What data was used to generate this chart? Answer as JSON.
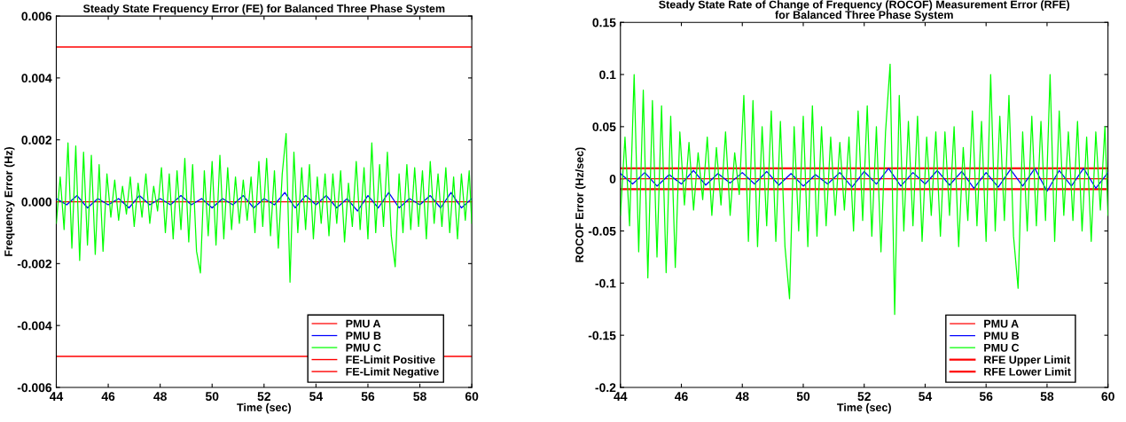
{
  "chart_data": [
    {
      "type": "line",
      "title": "Steady State Frequency Error (FE) for Balanced Three Phase System",
      "xlabel": "Time (sec)",
      "ylabel": "Frequency Error (Hz)",
      "xlim": [
        44,
        60
      ],
      "xticks": [
        44,
        46,
        48,
        50,
        52,
        54,
        56,
        58,
        60
      ],
      "ylim": [
        -0.006,
        0.006
      ],
      "yticks": [
        {
          "value": -0.006,
          "label": "-0.006"
        },
        {
          "value": -0.004,
          "label": "-0.004"
        },
        {
          "value": -0.002,
          "label": "-0.002"
        },
        {
          "value": 0,
          "label": "0.000"
        },
        {
          "value": 0.002,
          "label": "0.002"
        },
        {
          "value": 0.004,
          "label": "0.004"
        },
        {
          "value": 0.006,
          "label": "0.006"
        }
      ],
      "grid": false,
      "legend": "bottom right",
      "series": [
        {
          "name": "PMU A",
          "color": "#ff0000",
          "x": [
            44,
            60
          ],
          "values": [
            0,
            0
          ]
        },
        {
          "name": "PMU B",
          "color": "#0000ff",
          "x": [
            44,
            44.4,
            44.8,
            45.2,
            45.6,
            46,
            46.4,
            46.8,
            47.2,
            47.6,
            48,
            48.4,
            48.8,
            49.2,
            49.6,
            50,
            50.4,
            50.8,
            51.2,
            51.6,
            52,
            52.4,
            52.8,
            53.2,
            53.6,
            54,
            54.4,
            54.8,
            55.2,
            55.6,
            56,
            56.4,
            56.8,
            57.2,
            57.6,
            58,
            58.4,
            58.8,
            59.2,
            59.6,
            60
          ],
          "values": [
            0.0001,
            -0.0001,
            0.0002,
            -0.0002,
            0.0001,
            -0.0001,
            0.0001,
            -0.0002,
            0.0002,
            -0.0001,
            0.0001,
            -0.0001,
            0.0002,
            -0.0001,
            0.0001,
            -0.0002,
            0.0001,
            -0.0001,
            0.0002,
            -0.0002,
            0.0001,
            -0.0001,
            0.0003,
            -0.0002,
            0.0002,
            -0.0001,
            0.0002,
            -0.0002,
            0.0001,
            -0.0003,
            0.0002,
            -0.0002,
            0.0003,
            -0.0002,
            0.0001,
            -0.0001,
            0.0002,
            -0.0002,
            0.0003,
            -0.0002,
            0.0001
          ]
        },
        {
          "name": "PMU C",
          "color": "#00ff00",
          "x": [
            44,
            44.15,
            44.3,
            44.45,
            44.6,
            44.75,
            44.9,
            45.05,
            45.2,
            45.35,
            45.5,
            45.65,
            45.8,
            45.95,
            46.1,
            46.25,
            46.4,
            46.55,
            46.7,
            46.85,
            47,
            47.15,
            47.3,
            47.45,
            47.6,
            47.75,
            47.9,
            48.05,
            48.2,
            48.35,
            48.5,
            48.65,
            48.8,
            48.95,
            49.1,
            49.25,
            49.4,
            49.55,
            49.7,
            49.85,
            50,
            50.15,
            50.3,
            50.45,
            50.6,
            50.75,
            50.9,
            51.05,
            51.2,
            51.35,
            51.5,
            51.65,
            51.8,
            51.95,
            52.1,
            52.25,
            52.4,
            52.55,
            52.7,
            52.85,
            53,
            53.15,
            53.3,
            53.45,
            53.6,
            53.75,
            53.9,
            54.05,
            54.2,
            54.35,
            54.5,
            54.65,
            54.8,
            54.95,
            55.1,
            55.25,
            55.4,
            55.55,
            55.7,
            55.85,
            56,
            56.15,
            56.3,
            56.45,
            56.6,
            56.75,
            56.9,
            57.05,
            57.2,
            57.35,
            57.5,
            57.65,
            57.8,
            57.95,
            58.1,
            58.25,
            58.4,
            58.55,
            58.7,
            58.85,
            59,
            59.15,
            59.3,
            59.45,
            59.6,
            59.75,
            59.9,
            60
          ],
          "values": [
            -0.0007,
            0.0008,
            -0.0009,
            0.0019,
            -0.0015,
            0.0018,
            -0.0019,
            0.0016,
            -0.0014,
            0.0015,
            -0.0017,
            0.0012,
            -0.0016,
            0.0009,
            -0.0005,
            0.0007,
            -0.0006,
            0.0005,
            -0.0004,
            0.0008,
            -0.0008,
            0.0006,
            -0.0005,
            0.0009,
            -0.0007,
            0.0005,
            -0.0003,
            0.0011,
            -0.001,
            0.0009,
            -0.0012,
            0.001,
            -0.0009,
            0.0014,
            -0.0013,
            0.0012,
            -0.0016,
            -0.0023,
            0.001,
            -0.0011,
            0.0013,
            -0.0014,
            0.0015,
            -0.0012,
            0.0011,
            -0.0009,
            0.0008,
            -0.0007,
            0.0007,
            -0.0006,
            0.0008,
            -0.001,
            0.0013,
            -0.0008,
            0.0014,
            -0.0011,
            0.001,
            -0.0015,
            0.0009,
            0.0022,
            -0.0026,
            0.0016,
            -0.001,
            0.0011,
            -0.0009,
            0.0012,
            -0.0012,
            0.0008,
            -0.0007,
            0.0009,
            -0.0011,
            0.0009,
            -0.0007,
            0.001,
            -0.0013,
            0.0006,
            -0.0008,
            0.0013,
            -0.0009,
            0.0011,
            -0.0012,
            0.0019,
            -0.001,
            0.0012,
            -0.0008,
            0.0016,
            -0.0011,
            -0.0021,
            0.0009,
            -0.001,
            0.0012,
            -0.0009,
            0.0011,
            -0.0008,
            0.001,
            -0.0012,
            0.0013,
            -0.0007,
            0.0009,
            -0.0008,
            0.0011,
            -0.001,
            0.0008,
            -0.0012,
            0.0009,
            -0.0006,
            0.001,
            -0.0007
          ]
        }
      ],
      "ref_lines": [
        {
          "axis": "y",
          "value": 0.005,
          "label": "FE-Limit Positive",
          "color": "#ff0000"
        },
        {
          "axis": "y",
          "value": -0.005,
          "label": "FE-Limit Negative",
          "color": "#ff0000"
        }
      ]
    },
    {
      "type": "line",
      "title": "Steady State Rate of Change of Frequency (ROCOF) Measurement Error (RFE)\nfor Balanced Three Phase System",
      "xlabel": "Time (sec)",
      "ylabel": "ROCOF Error (Hz/sec)",
      "xlim": [
        44,
        60
      ],
      "xticks": [
        44,
        46,
        48,
        50,
        52,
        54,
        56,
        58,
        60
      ],
      "ylim": [
        -0.2,
        0.15
      ],
      "yticks": [
        -0.2,
        -0.15,
        -0.1,
        -0.05,
        0,
        0.05,
        0.1,
        0.15
      ],
      "grid": false,
      "legend": "bottom right",
      "series": [
        {
          "name": "PMU A",
          "color": "#ff0000",
          "x": [
            44,
            60
          ],
          "values": [
            0,
            0
          ]
        },
        {
          "name": "PMU B",
          "color": "#0000ff",
          "x": [
            44,
            44.4,
            44.8,
            45.2,
            45.6,
            46,
            46.4,
            46.8,
            47.2,
            47.6,
            48,
            48.4,
            48.8,
            49.2,
            49.6,
            50,
            50.4,
            50.8,
            51.2,
            51.6,
            52,
            52.4,
            52.8,
            53.2,
            53.6,
            54,
            54.4,
            54.8,
            55.2,
            55.6,
            56,
            56.4,
            56.8,
            57.2,
            57.6,
            58,
            58.4,
            58.8,
            59.2,
            59.6,
            60
          ],
          "values": [
            0.005,
            -0.005,
            0.006,
            -0.007,
            0.004,
            -0.005,
            0.008,
            -0.006,
            0.005,
            -0.004,
            0.006,
            -0.005,
            0.007,
            -0.006,
            0.005,
            -0.007,
            0.004,
            -0.005,
            0.006,
            -0.008,
            0.007,
            -0.005,
            0.01,
            -0.007,
            0.006,
            -0.005,
            0.008,
            -0.006,
            0.007,
            -0.009,
            0.006,
            -0.008,
            0.009,
            -0.007,
            0.01,
            -0.012,
            0.008,
            -0.007,
            0.01,
            -0.009,
            0.006
          ]
        },
        {
          "name": "PMU C",
          "color": "#00ff00",
          "x": [
            44,
            44.15,
            44.3,
            44.45,
            44.6,
            44.75,
            44.9,
            45.05,
            45.2,
            45.35,
            45.5,
            45.65,
            45.8,
            45.95,
            46.1,
            46.25,
            46.4,
            46.55,
            46.7,
            46.85,
            47,
            47.15,
            47.3,
            47.45,
            47.6,
            47.75,
            47.9,
            48.05,
            48.2,
            48.35,
            48.5,
            48.65,
            48.8,
            48.95,
            49.1,
            49.25,
            49.4,
            49.55,
            49.7,
            49.85,
            50,
            50.15,
            50.3,
            50.45,
            50.6,
            50.75,
            50.9,
            51.05,
            51.2,
            51.35,
            51.5,
            51.65,
            51.8,
            51.95,
            52.1,
            52.25,
            52.4,
            52.55,
            52.7,
            52.85,
            53,
            53.15,
            53.3,
            53.45,
            53.6,
            53.75,
            53.9,
            54.05,
            54.2,
            54.35,
            54.5,
            54.65,
            54.8,
            54.95,
            55.1,
            55.25,
            55.4,
            55.55,
            55.7,
            55.85,
            56,
            56.15,
            56.3,
            56.45,
            56.6,
            56.75,
            56.9,
            57.05,
            57.2,
            57.35,
            57.5,
            57.65,
            57.8,
            57.95,
            58.1,
            58.25,
            58.4,
            58.55,
            58.7,
            58.85,
            59,
            59.15,
            59.3,
            59.45,
            59.6,
            59.75,
            59.9,
            60
          ],
          "values": [
            -0.035,
            0.04,
            -0.045,
            0.1,
            -0.07,
            0.085,
            -0.095,
            0.075,
            -0.075,
            0.07,
            -0.09,
            0.06,
            -0.085,
            0.045,
            -0.025,
            0.035,
            -0.03,
            0.025,
            -0.02,
            0.04,
            -0.035,
            0.03,
            -0.025,
            0.045,
            -0.035,
            0.025,
            -0.015,
            0.08,
            -0.06,
            0.075,
            -0.065,
            0.05,
            -0.045,
            0.065,
            -0.06,
            0.055,
            -0.065,
            -0.115,
            0.05,
            -0.05,
            0.06,
            -0.065,
            0.07,
            -0.055,
            0.05,
            -0.045,
            0.04,
            -0.035,
            0.035,
            -0.03,
            0.04,
            -0.05,
            0.065,
            -0.04,
            0.07,
            -0.055,
            0.05,
            -0.07,
            0.045,
            0.11,
            -0.13,
            0.08,
            -0.05,
            0.055,
            -0.045,
            0.06,
            -0.06,
            0.04,
            -0.035,
            0.045,
            -0.055,
            0.045,
            -0.035,
            0.05,
            -0.065,
            0.03,
            -0.04,
            0.065,
            -0.045,
            0.055,
            -0.06,
            0.1,
            -0.05,
            0.06,
            -0.04,
            0.08,
            -0.055,
            -0.105,
            0.045,
            -0.05,
            0.06,
            -0.045,
            0.055,
            -0.04,
            0.1,
            -0.06,
            0.065,
            -0.035,
            0.045,
            -0.04,
            0.055,
            -0.05,
            0.04,
            -0.06,
            0.045,
            -0.03,
            0.05,
            -0.035
          ]
        }
      ],
      "ref_lines": [
        {
          "axis": "y",
          "value": 0.01,
          "label": "RFE Upper Limit",
          "color": "#ff0000"
        },
        {
          "axis": "y",
          "value": -0.01,
          "label": "RFE Lower Limit",
          "color": "#ff0000"
        }
      ]
    }
  ]
}
